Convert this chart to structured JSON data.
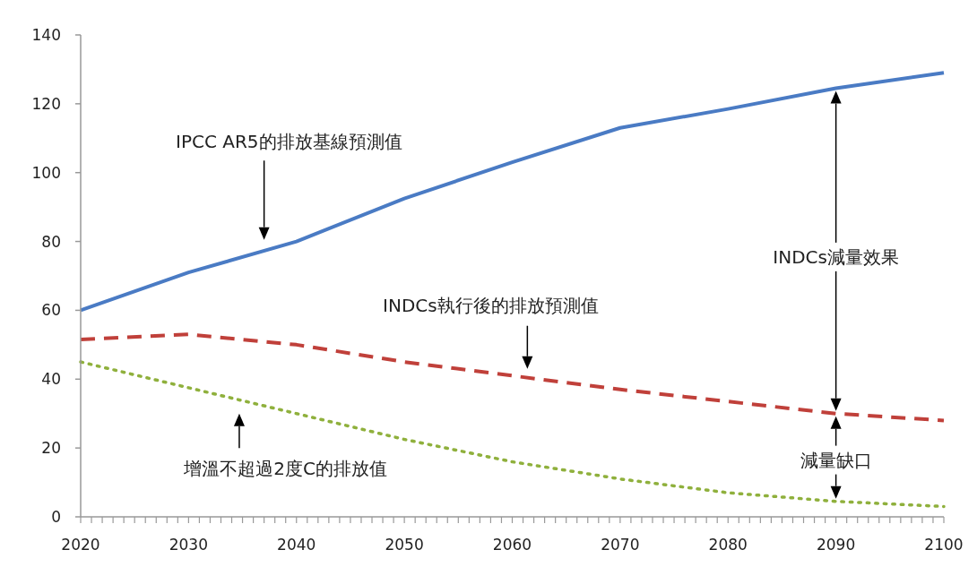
{
  "chart_data": {
    "type": "line",
    "x": [
      2020,
      2030,
      2040,
      2050,
      2060,
      2070,
      2080,
      2090,
      2100
    ],
    "series": [
      {
        "color": "#4a7bc4",
        "line_style": "solid",
        "values": [
          60,
          71,
          80,
          92.5,
          103,
          113,
          118.5,
          124.5,
          129
        ]
      },
      {
        "color": "#c0403a",
        "line_style": "dashed",
        "values": [
          51.5,
          53,
          50,
          45,
          41,
          37,
          33.5,
          30,
          28
        ]
      },
      {
        "color": "#8fb03c",
        "line_style": "dotted",
        "values": [
          45,
          37.5,
          30,
          22.5,
          16,
          11,
          7,
          4.5,
          3
        ]
      }
    ],
    "xlim": [
      2020,
      2100
    ],
    "xticks": [
      2020,
      {
        "value": 2021,
        "label": null
      },
      {
        "value": 2022,
        "label": null
      },
      {
        "value": 2023,
        "label": null
      },
      {
        "value": 2024,
        "label": null
      },
      {
        "value": 2025,
        "label": null
      },
      {
        "value": 2026,
        "label": null
      },
      {
        "value": 2027,
        "label": null
      },
      {
        "value": 2028,
        "label": null
      },
      {
        "value": 2029,
        "label": null
      },
      2030,
      {
        "value": 2031,
        "label": null
      },
      {
        "value": 2032,
        "label": null
      },
      {
        "value": 2033,
        "label": null
      },
      {
        "value": 2034,
        "label": null
      },
      {
        "value": 2035,
        "label": null
      },
      {
        "value": 2036,
        "label": null
      },
      {
        "value": 2037,
        "label": null
      },
      {
        "value": 2038,
        "label": null
      },
      {
        "value": 2039,
        "label": null
      },
      2040,
      {
        "value": 2041,
        "label": null
      },
      {
        "value": 2042,
        "label": null
      },
      {
        "value": 2043,
        "label": null
      },
      {
        "value": 2044,
        "label": null
      },
      {
        "value": 2045,
        "label": null
      },
      {
        "value": 2046,
        "label": null
      },
      {
        "value": 2047,
        "label": null
      },
      {
        "value": 2048,
        "label": null
      },
      {
        "value": 2049,
        "label": null
      },
      2050,
      {
        "value": 2051,
        "label": null
      },
      {
        "value": 2052,
        "label": null
      },
      {
        "value": 2053,
        "label": null
      },
      {
        "value": 2054,
        "label": null
      },
      {
        "value": 2055,
        "label": null
      },
      {
        "value": 2056,
        "label": null
      },
      {
        "value": 2057,
        "label": null
      },
      {
        "value": 2058,
        "label": null
      },
      {
        "value": 2059,
        "label": null
      },
      2060,
      {
        "value": 2061,
        "label": null
      },
      {
        "value": 2062,
        "label": null
      },
      {
        "value": 2063,
        "label": null
      },
      {
        "value": 2064,
        "label": null
      },
      {
        "value": 2065,
        "label": null
      },
      {
        "value": 2066,
        "label": null
      },
      {
        "value": 2067,
        "label": null
      },
      {
        "value": 2068,
        "label": null
      },
      {
        "value": 2069,
        "label": null
      },
      2070,
      {
        "value": 2071,
        "label": null
      },
      {
        "value": 2072,
        "label": null
      },
      {
        "value": 2073,
        "label": null
      },
      {
        "value": 2074,
        "label": null
      },
      {
        "value": 2075,
        "label": null
      },
      {
        "value": 2076,
        "label": null
      },
      {
        "value": 2077,
        "label": null
      },
      {
        "value": 2078,
        "label": null
      },
      {
        "value": 2079,
        "label": null
      },
      2080,
      {
        "value": 2081,
        "label": null
      },
      {
        "value": 2082,
        "label": null
      },
      {
        "value": 2083,
        "label": null
      },
      {
        "value": 2084,
        "label": null
      },
      {
        "value": 2085,
        "label": null
      },
      {
        "value": 2086,
        "label": null
      },
      {
        "value": 2087,
        "label": null
      },
      {
        "value": 2088,
        "label": null
      },
      {
        "value": 2089,
        "label": null
      },
      2090,
      {
        "value": 2091,
        "label": null
      },
      {
        "value": 2092,
        "label": null
      },
      {
        "value": 2093,
        "label": null
      },
      {
        "value": 2094,
        "label": null
      },
      {
        "value": 2095,
        "label": null
      },
      {
        "value": 2096,
        "label": null
      },
      {
        "value": 2097,
        "label": null
      },
      {
        "value": 2098,
        "label": null
      },
      {
        "value": 2099,
        "label": null
      },
      2100
    ],
    "ylim": [
      0,
      140
    ],
    "yticks": [
      0,
      20,
      40,
      60,
      80,
      100,
      120,
      140
    ],
    "grid": false,
    "marker": "none",
    "annotations": [
      "IPCC AR5的排放基線預測值",
      "INDCs執行後的排放預測值",
      "增溫不超過2度C的排放值",
      "INDCs減量效果",
      "減量缺口"
    ]
  }
}
